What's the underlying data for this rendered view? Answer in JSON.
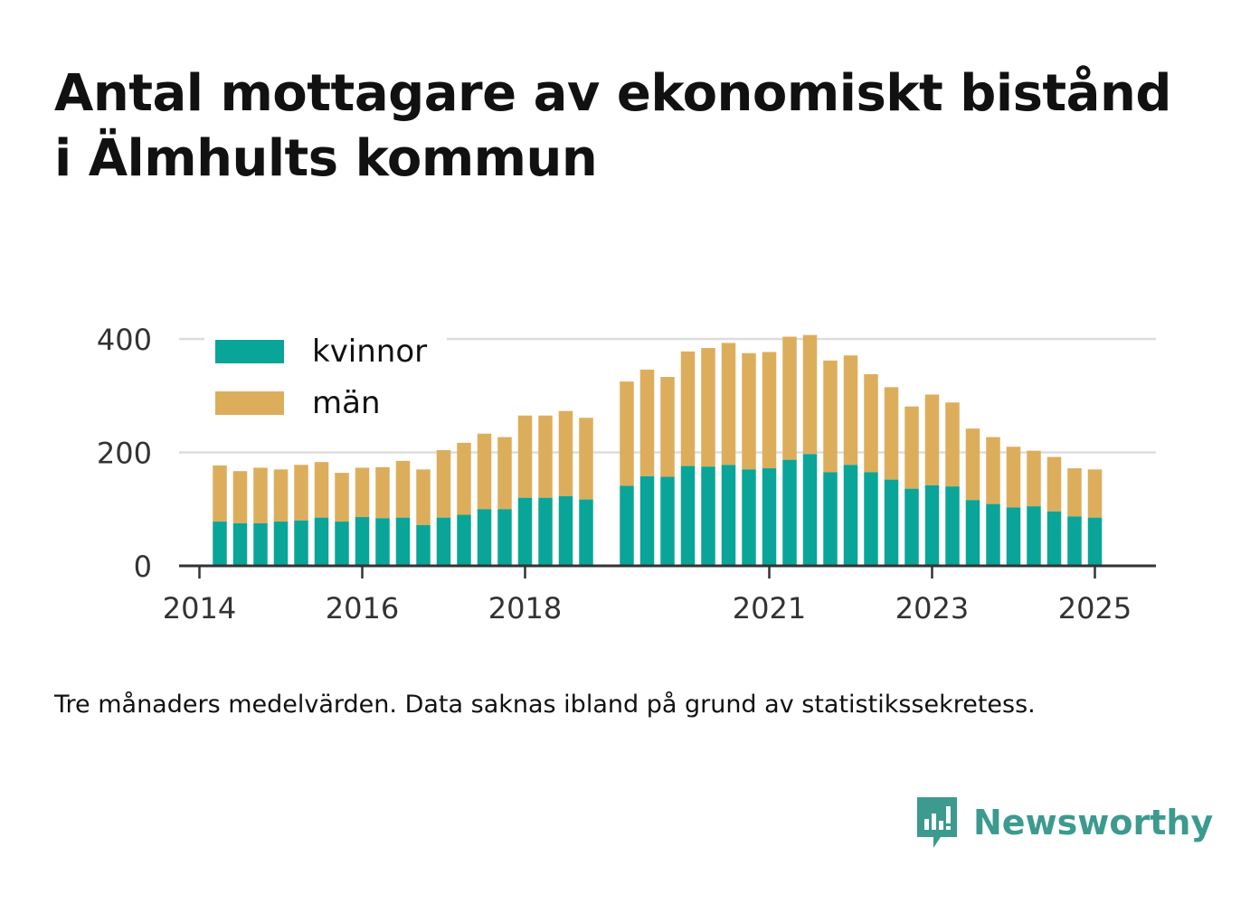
{
  "title_line1": "Antal mottagare av ekonomiskt bistånd",
  "title_line2": "i Älmhults kommun",
  "footnote": "Tre månaders medelvärden. Data saknas ibland på grund av statistikssekretess.",
  "brand": {
    "name": "Newsworthy",
    "icon": "newsworthy-logo-icon",
    "color": "#3c9a8f"
  },
  "colors": {
    "kvinnor": "#0aa599",
    "man": "#dcae5c",
    "grid": "#dddddd",
    "axis": "#333333"
  },
  "chart_data": {
    "type": "bar",
    "stacked": true,
    "ylim": [
      0,
      400
    ],
    "yticks": [
      0,
      200,
      400
    ],
    "xlim": [
      2013.75,
      2025.75
    ],
    "xticks": [
      2014,
      2016,
      2018,
      2021,
      2023,
      2025
    ],
    "grid": true,
    "legend_position": "top-left",
    "series": [
      {
        "name": "kvinnor",
        "color": "#0aa599",
        "values": [
          78,
          75,
          75,
          78,
          80,
          85,
          78,
          86,
          84,
          85,
          72,
          85,
          90,
          100,
          100,
          120,
          120,
          123,
          117,
          141,
          158,
          157,
          176,
          175,
          178,
          170,
          172,
          187,
          197,
          165,
          178,
          165,
          152,
          136,
          142,
          140,
          116,
          109,
          103,
          105,
          96,
          87,
          85
        ]
      },
      {
        "name": "män",
        "color": "#dcae5c",
        "values": [
          99,
          92,
          98,
          92,
          98,
          98,
          86,
          87,
          90,
          100,
          98,
          119,
          127,
          133,
          127,
          145,
          145,
          150,
          144,
          184,
          188,
          176,
          202,
          209,
          215,
          205,
          205,
          217,
          210,
          197,
          193,
          173,
          163,
          145,
          160,
          148,
          126,
          118,
          107,
          98,
          96,
          85,
          85
        ]
      }
    ],
    "x": [
      2014.25,
      2014.5,
      2014.75,
      2015.0,
      2015.25,
      2015.5,
      2015.75,
      2016.0,
      2016.25,
      2016.5,
      2016.75,
      2017.0,
      2017.25,
      2017.5,
      2017.75,
      2018.0,
      2018.25,
      2018.5,
      2018.75,
      2019.25,
      2019.5,
      2019.75,
      2020.0,
      2020.25,
      2020.5,
      2020.75,
      2021.0,
      2021.25,
      2021.5,
      2021.75,
      2022.0,
      2022.25,
      2022.5,
      2022.75,
      2023.0,
      2023.25,
      2023.5,
      2023.75,
      2024.0,
      2024.25,
      2024.5,
      2024.75,
      2025.0
    ]
  }
}
